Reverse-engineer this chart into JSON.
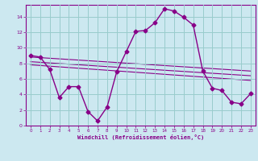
{
  "x": [
    0,
    1,
    2,
    3,
    4,
    5,
    6,
    7,
    8,
    9,
    10,
    11,
    12,
    13,
    14,
    15,
    16,
    17,
    18,
    19,
    20,
    21,
    22,
    23
  ],
  "y_main": [
    9.0,
    8.8,
    7.2,
    3.6,
    5.0,
    5.0,
    1.8,
    0.6,
    2.4,
    6.9,
    9.5,
    12.1,
    12.2,
    13.2,
    15.0,
    14.7,
    13.9,
    12.9,
    7.0,
    4.8,
    4.5,
    3.0,
    2.8,
    4.1
  ],
  "reg_line1_x": [
    0,
    23
  ],
  "reg_line1_y": [
    8.8,
    7.0
  ],
  "reg_line2_x": [
    0,
    23
  ],
  "reg_line2_y": [
    8.2,
    6.4
  ],
  "reg_line3_x": [
    0,
    23
  ],
  "reg_line3_y": [
    7.8,
    5.8
  ],
  "bg_color": "#cce8f0",
  "line_color": "#880088",
  "grid_color": "#99cccc",
  "marker": "D",
  "marker_size": 2.5,
  "xlim": [
    -0.5,
    23.5
  ],
  "ylim": [
    0,
    15.5
  ],
  "yticks": [
    0,
    2,
    4,
    6,
    8,
    10,
    12,
    14
  ],
  "xticks": [
    0,
    1,
    2,
    3,
    4,
    5,
    6,
    7,
    8,
    9,
    10,
    11,
    12,
    13,
    14,
    15,
    16,
    17,
    18,
    19,
    20,
    21,
    22,
    23
  ],
  "xlabel": "Windchill (Refroidissement éolien,°C)"
}
